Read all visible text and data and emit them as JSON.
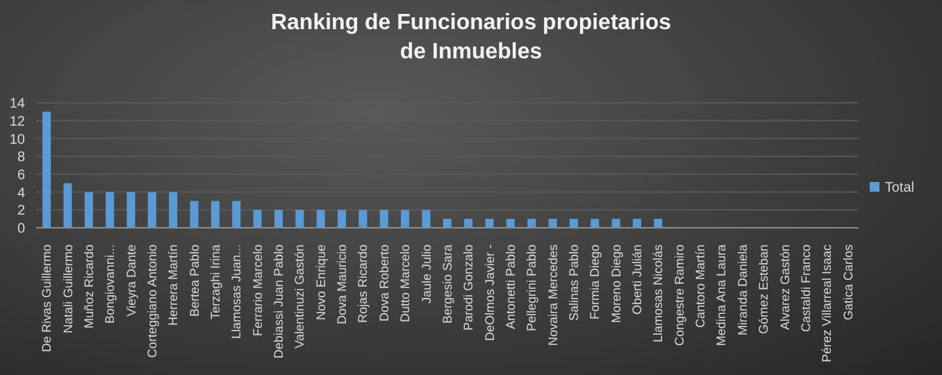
{
  "chart_data": {
    "type": "bar",
    "title": "Ranking de Funcionarios propietarios de Inmuebles",
    "categories": [
      "De Rivas Guillermo",
      "Natali Guillermo",
      "Muñoz Ricardo",
      "Bongiovanni...",
      "Vieyra Dante",
      "Corteggiano Antonio",
      "Herrera Martín",
      "Bertea Pablo",
      "Terzaghi Irina",
      "Llamosas Juan...",
      "Ferrario Marcelo",
      "Debiassi Juan Pablo",
      "Valentinuzi Gastón",
      "Novo Enrique",
      "Dova Mauricio",
      "Rojas Ricardo",
      "Dova Roberto",
      "Dutto Marcelo",
      "Jaule Julio",
      "Bergesio Sara",
      "Parodi Gonzalo",
      "DeOlmos Javier -",
      "Antonetti Pablo",
      "Pellegrini Pablo",
      "Novaira Mercedes",
      "Salinas Pablo",
      "Formia Diego",
      "Moreno Diego",
      "Oberti Julián",
      "Llamosas Nicolás",
      "Congestre Ramiro",
      "Cantoro Martín",
      "Medina Ana Laura",
      "Miranda Daniela",
      "Gómez Esteban",
      "Alvarez Gastón",
      "Castaldi Franco",
      "Pérez Villarreal Isaac",
      "Gatica Carlos"
    ],
    "series": [
      {
        "name": "Total",
        "color": "#5b9bd5",
        "values": [
          13,
          5,
          4,
          4,
          4,
          4,
          4,
          3,
          3,
          3,
          2,
          2,
          2,
          2,
          2,
          2,
          2,
          2,
          2,
          1,
          1,
          1,
          1,
          1,
          1,
          1,
          1,
          1,
          1,
          1,
          0,
          0,
          0,
          0,
          0,
          0,
          0,
          0,
          0
        ]
      }
    ],
    "ylim": [
      0,
      14
    ],
    "yticks": [
      0,
      2,
      4,
      6,
      8,
      10,
      12,
      14
    ],
    "grid": "y",
    "legend": "right"
  }
}
